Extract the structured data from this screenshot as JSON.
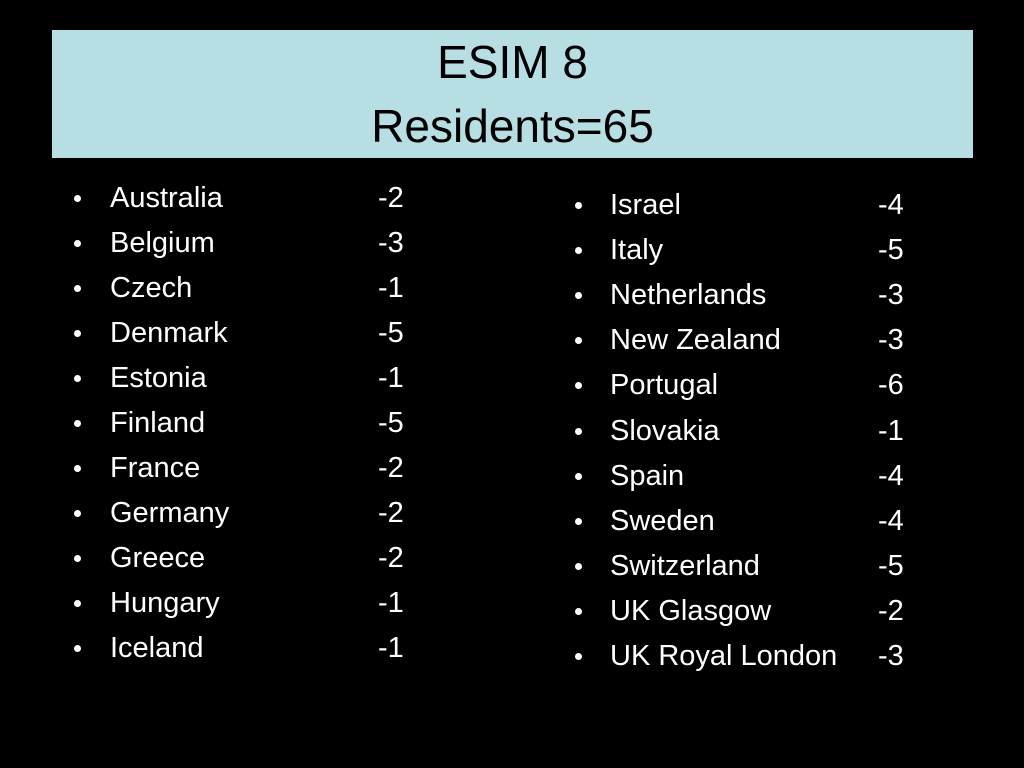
{
  "title": {
    "lines": [
      "ESIM 8",
      "Residents=65"
    ]
  },
  "left_list": {
    "items": [
      {
        "name": "Australia",
        "value": -2
      },
      {
        "name": "Belgium",
        "value": -3
      },
      {
        "name": "Czech",
        "value": -1
      },
      {
        "name": "Denmark",
        "value": -5
      },
      {
        "name": "Estonia",
        "value": -1
      },
      {
        "name": "Finland",
        "value": -5
      },
      {
        "name": "France",
        "value": -2
      },
      {
        "name": "Germany",
        "value": -2
      },
      {
        "name": "Greece",
        "value": -2
      },
      {
        "name": "Hungary",
        "value": -1
      },
      {
        "name": "Iceland",
        "value": -1
      }
    ]
  },
  "right_list": {
    "items": [
      {
        "name": "Israel",
        "value": -4
      },
      {
        "name": "Italy",
        "value": -5
      },
      {
        "name": "Netherlands",
        "value": -3
      },
      {
        "name": "New Zealand",
        "value": -3
      },
      {
        "name": "Portugal",
        "value": -6
      },
      {
        "name": "Slovakia",
        "value": -1
      },
      {
        "name": "Spain",
        "value": -4
      },
      {
        "name": "Sweden",
        "value": -4
      },
      {
        "name": "Switzerland",
        "value": -5
      },
      {
        "name": "UK Glasgow",
        "value": -2
      },
      {
        "name": "UK Royal London",
        "value": -3
      }
    ]
  }
}
